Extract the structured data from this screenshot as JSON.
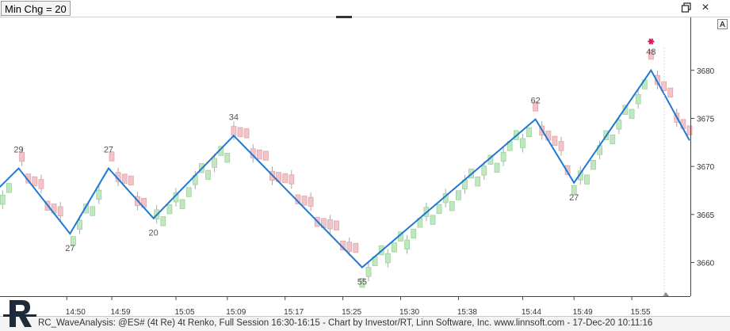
{
  "header": {
    "indicator_label": "Min Chg = 20",
    "restore_icon": "restore-window-icon",
    "close_icon": "close-icon",
    "close_symbol": "×",
    "autoscale_label": "A"
  },
  "footer": {
    "text": "RC_WaveAnalysis: @ES# (4t Re) 4t Renko, Full Session 16:30-16:15 - Chart by Investor/RT, Linn Software, Inc. www.linnsoft.com - 17-Dec-20 10:11:16"
  },
  "colors": {
    "up_brick_fill": "#bfe8bf",
    "up_brick_border": "#9fd09f",
    "down_brick_fill": "#f2c4c8",
    "down_brick_border": "#dca6ab",
    "wave_line": "#1f78d1",
    "marker": "#e0145e",
    "wick": "#a8a8a8"
  },
  "chart_data": {
    "type": "renko_wave",
    "title": "",
    "xlabel": "",
    "ylabel": "",
    "ylim": [
      3656.5,
      3685.5
    ],
    "y_ticks": [
      3660,
      3665,
      3670,
      3675,
      3680
    ],
    "x_ticks": [
      {
        "label": "14:50",
        "index": 10
      },
      {
        "label": "14:59",
        "index": 17
      },
      {
        "label": "15:05",
        "index": 27
      },
      {
        "label": "15:09",
        "index": 35
      },
      {
        "label": "15:17",
        "index": 44
      },
      {
        "label": "15:25",
        "index": 53
      },
      {
        "label": "15:30",
        "index": 62
      },
      {
        "label": "15:38",
        "index": 71
      },
      {
        "label": "15:44",
        "index": 81
      },
      {
        "label": "15:49",
        "index": 89
      },
      {
        "label": "15:55",
        "index": 98
      }
    ],
    "pivots": [
      {
        "index": -2.5,
        "price": 3666.5
      },
      {
        "index": 2.5,
        "price": 3669.8,
        "label": "29",
        "pos": "above"
      },
      {
        "index": 10.5,
        "price": 3663.0,
        "label": "27",
        "pos": "below"
      },
      {
        "index": 16.5,
        "price": 3669.8,
        "label": "27",
        "pos": "above"
      },
      {
        "index": 23.5,
        "price": 3664.6,
        "label": "20",
        "pos": "below"
      },
      {
        "index": 36.0,
        "price": 3673.2,
        "label": "34",
        "pos": "above"
      },
      {
        "index": 56.0,
        "price": 3659.5,
        "label": "55",
        "pos": "below"
      },
      {
        "index": 83.0,
        "price": 3674.9,
        "label": "62",
        "pos": "above"
      },
      {
        "index": 89.0,
        "price": 3668.3,
        "label": "27",
        "pos": "below"
      },
      {
        "index": 101.0,
        "price": 3680.0,
        "label": "48",
        "pos": "above"
      },
      {
        "index": 107.0,
        "price": 3672.7
      }
    ],
    "marker": {
      "index": 101.0,
      "price": 3683.0,
      "shape": "asterisk"
    }
  }
}
